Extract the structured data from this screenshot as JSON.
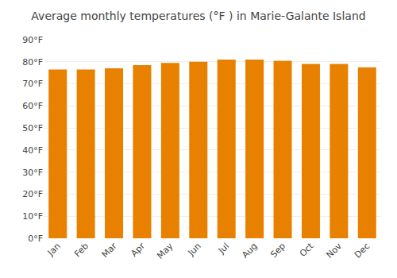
{
  "chart_data": {
    "type": "bar",
    "title": "Average monthly temperatures (°F ) in Marie-Galante Island",
    "categories": [
      "Jan",
      "Feb",
      "Mar",
      "Apr",
      "May",
      "Jun",
      "Jul",
      "Aug",
      "Sep",
      "Oct",
      "Nov",
      "Dec"
    ],
    "values": [
      76.5,
      76.5,
      77,
      78.5,
      79.5,
      80,
      81,
      81,
      80.5,
      79,
      79,
      77.5
    ],
    "color": "#E88000",
    "ylim": [
      0,
      90
    ],
    "yticks": [
      {
        "value": 0,
        "label": "0°F"
      },
      {
        "value": 10,
        "label": "10°F"
      },
      {
        "value": 20,
        "label": "20°F"
      },
      {
        "value": 30,
        "label": "30°F"
      },
      {
        "value": 40,
        "label": "40°F"
      },
      {
        "value": 50,
        "label": "50°F"
      },
      {
        "value": 60,
        "label": "60°F"
      },
      {
        "value": 70,
        "label": "70°F"
      },
      {
        "value": 80,
        "label": "80°F"
      },
      {
        "value": 90,
        "label": "90°F"
      }
    ],
    "grid": true
  }
}
